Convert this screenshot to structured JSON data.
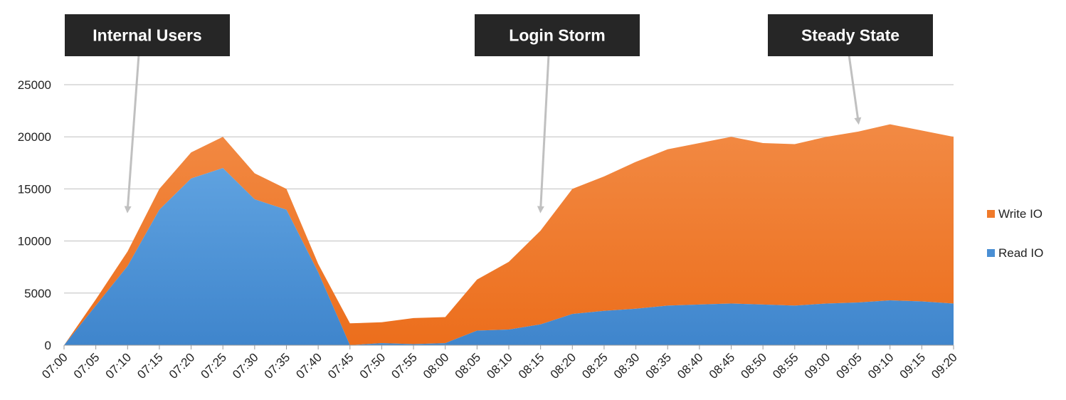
{
  "chart_data": {
    "type": "area",
    "stacked": true,
    "title": "",
    "xlabel": "",
    "ylabel": "",
    "x": [
      "07:00",
      "07:05",
      "07:10",
      "07:15",
      "07:20",
      "07:25",
      "07:30",
      "07:35",
      "07:40",
      "07:45",
      "07:50",
      "07:55",
      "08:00",
      "08:05",
      "08:10",
      "08:15",
      "08:20",
      "08:25",
      "08:30",
      "08:35",
      "08:40",
      "08:45",
      "08:50",
      "08:55",
      "09:00",
      "09:05",
      "09:10",
      "09:15",
      "09:20"
    ],
    "ylim": [
      0,
      25000
    ],
    "yticks": [
      "0",
      "5000",
      "10000",
      "15000",
      "20000",
      "25000"
    ],
    "grid": true,
    "legend": "right",
    "series": [
      {
        "name": "Read IO",
        "color": "#4a8fd4",
        "values": [
          0,
          3800,
          7600,
          13000,
          16000,
          17000,
          14000,
          13000,
          7000,
          0,
          200,
          100,
          200,
          1400,
          1500,
          2000,
          3000,
          3300,
          3500,
          3800,
          3900,
          4000,
          3900,
          3800,
          4000,
          4100,
          4300,
          4200,
          4000
        ]
      },
      {
        "name": "Write IO",
        "color": "#f07a2a",
        "values": [
          0,
          600,
          1400,
          2000,
          2500,
          3000,
          2500,
          2000,
          800,
          2100,
          2000,
          2500,
          2500,
          4900,
          6500,
          9000,
          12000,
          12900,
          14100,
          15000,
          15500,
          16000,
          15500,
          15500,
          16000,
          16400,
          16900,
          16400,
          16000
        ]
      }
    ],
    "annotations": [
      {
        "text": "Internal Users",
        "point_x": "07:10",
        "point_y": 13000
      },
      {
        "text": "Login Storm",
        "point_x": "08:15",
        "point_y": 13000
      },
      {
        "text": "Steady State",
        "point_x": "09:05",
        "point_y": 21500
      }
    ]
  }
}
